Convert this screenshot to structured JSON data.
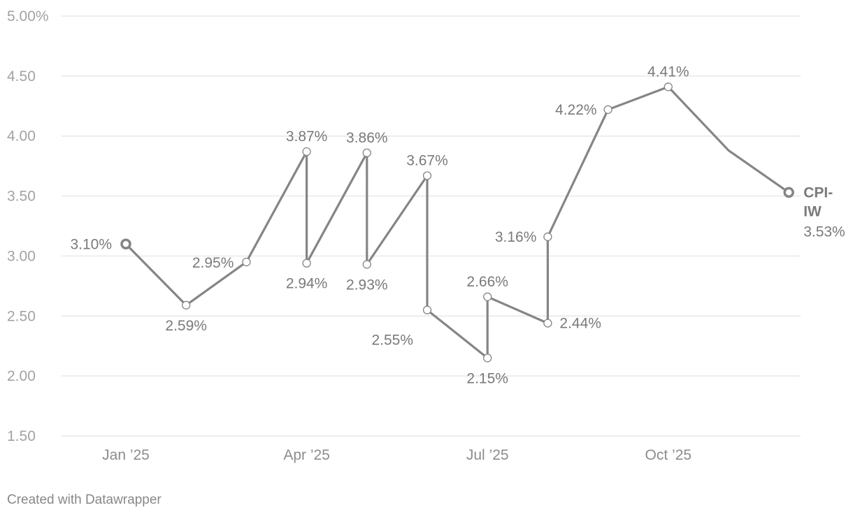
{
  "chart_data": {
    "type": "line",
    "title": "",
    "xlabel": "",
    "ylabel": "",
    "ylim": [
      1.5,
      5.0
    ],
    "y_ticks": [
      {
        "value": 1.5,
        "label": "1.50"
      },
      {
        "value": 2.0,
        "label": "2.00"
      },
      {
        "value": 2.5,
        "label": "2.50"
      },
      {
        "value": 3.0,
        "label": "3.00"
      },
      {
        "value": 3.5,
        "label": "3.50"
      },
      {
        "value": 4.0,
        "label": "4.00"
      },
      {
        "value": 4.5,
        "label": "4.50"
      },
      {
        "value": 5.0,
        "label": "5.00%"
      }
    ],
    "x_ticks": [
      {
        "date": "2025-01",
        "label": "Jan ’25"
      },
      {
        "date": "2025-04",
        "label": "Apr ’25"
      },
      {
        "date": "2025-07",
        "label": "Jul ’25"
      },
      {
        "date": "2025-10",
        "label": "Oct ’25"
      }
    ],
    "grid": true,
    "series": [
      {
        "name": "CPI-IW",
        "color": "#858585",
        "end_value_label": "3.53%",
        "points": [
          {
            "x": "2025-01",
            "y": 3.1,
            "label": "3.10%"
          },
          {
            "x": "2025-02",
            "y": 2.59,
            "label": "2.59%"
          },
          {
            "x": "2025-03",
            "y": 2.95,
            "label": "2.95%"
          },
          {
            "x": "2025-04",
            "y": 3.87,
            "label": "3.87%"
          },
          {
            "x": "2025-04",
            "y": 2.94,
            "label": "2.94%"
          },
          {
            "x": "2025-05",
            "y": 3.86,
            "label": "3.86%"
          },
          {
            "x": "2025-05",
            "y": 2.93,
            "label": "2.93%"
          },
          {
            "x": "2025-06",
            "y": 3.67,
            "label": "3.67%"
          },
          {
            "x": "2025-06",
            "y": 2.55,
            "label": "2.55%"
          },
          {
            "x": "2025-07",
            "y": 2.15,
            "label": "2.15%"
          },
          {
            "x": "2025-07",
            "y": 2.66,
            "label": "2.66%"
          },
          {
            "x": "2025-08",
            "y": 2.44,
            "label": "2.44%"
          },
          {
            "x": "2025-08",
            "y": 3.16,
            "label": "3.16%"
          },
          {
            "x": "2025-09",
            "y": 4.22,
            "label": "4.22%"
          },
          {
            "x": "2025-10",
            "y": 4.41,
            "label": "4.41%"
          },
          {
            "x": "2025-11",
            "y": 3.88,
            "label": ""
          },
          {
            "x": "2025-12",
            "y": 3.53,
            "label": ""
          }
        ]
      }
    ]
  },
  "footer": {
    "credit": "Created with Datawrapper"
  }
}
